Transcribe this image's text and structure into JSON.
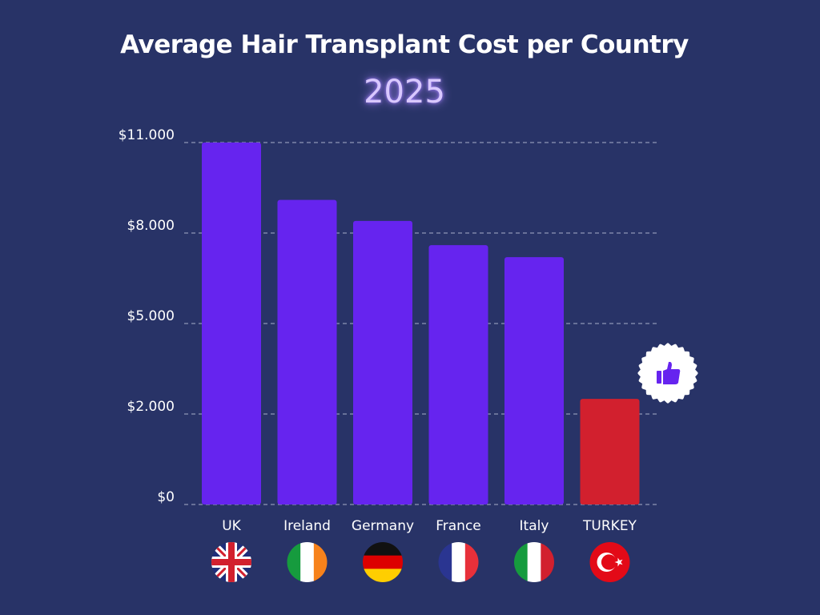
{
  "chart_data": {
    "type": "bar",
    "title": "Average Hair Transplant Cost per Country",
    "subtitle": "2025",
    "categories": [
      "UK",
      "Ireland",
      "Germany",
      "France",
      "Italy",
      "TURKEY"
    ],
    "values": [
      11000,
      9100,
      8400,
      7600,
      7200,
      2500
    ],
    "y_ticks": [
      0,
      2000,
      5000,
      8000,
      11000
    ],
    "y_tick_labels": [
      "$0",
      "$2.000",
      "$5.000",
      "$8.000",
      "$11.000"
    ],
    "ylim": [
      0,
      11000
    ],
    "grid": true,
    "colors": {
      "default": "#6624ef",
      "highlight": "#d2202e",
      "background": "#283367"
    },
    "highlight_category": "TURKEY",
    "highlight_icon": "thumbs-up-icon",
    "flags": [
      "uk-flag-icon",
      "ireland-flag-icon",
      "germany-flag-icon",
      "france-flag-icon",
      "italy-flag-icon",
      "turkey-flag-icon"
    ]
  }
}
